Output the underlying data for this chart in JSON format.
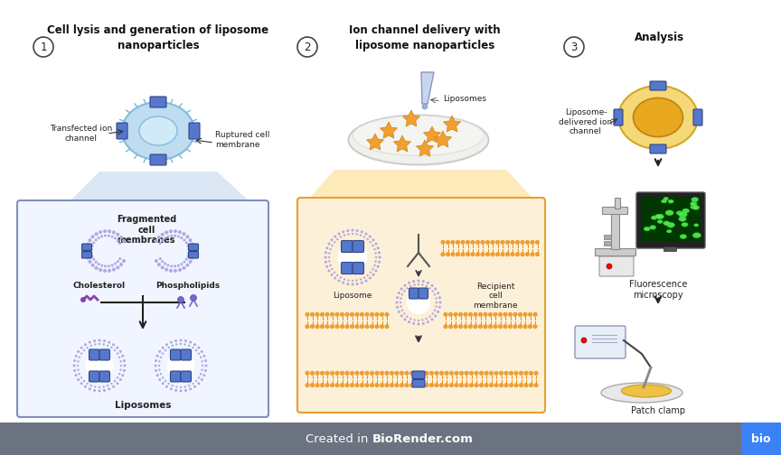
{
  "bg_color": "#ffffff",
  "footer_bg": "#6b7280",
  "footer_blue": "#3b82f6",
  "footer_text": "Created in ",
  "footer_brand": "BioRender.com",
  "footer_icon": "bio",
  "section1_title": "Cell lysis and generation of liposome\nnanoparticles",
  "section2_title": "Ion channel delivery with\nliposome nanoparticles",
  "section3_title": "Analysis",
  "label1": "Transfected ion\nchannel",
  "label2": "Ruptured cell\nmembrane",
  "label3": "Liposomes",
  "label4": "Fragmented\ncell\nmembranes",
  "label5": "Cholesterol",
  "label6": "Phospholipids",
  "label7": "Liposomes",
  "label8": "Liposome",
  "label9": "Recipient\ncell\nmembrane",
  "label10": "Liposome-\ndelivered ion\nchannel",
  "label11": "Fluorescence\nmicroscopy",
  "label12": "Patch clamp",
  "num1": "1",
  "num2": "2",
  "num3": "3",
  "cell_fill": "#b8d9f0",
  "cell_outline": "#7ab8d9",
  "liposome_fill": "#e8e0f8",
  "liposome_outline": "#8080c0",
  "liposome_spike": "#b0a8e0",
  "membrane_orange": "#f0a030",
  "membrane_dot": "#e89020",
  "channel_fill": "#5577cc",
  "channel_edge": "#334488",
  "box1_fill": "#f0f5ff",
  "box1_outline": "#8090c0",
  "box2_fill": "#fdf0d8",
  "box2_outline": "#e8a030",
  "funnel1_fill": "#ccddf0",
  "funnel2_fill": "#fde8b0",
  "cholesterol_color": "#8844aa",
  "phospholipid_color": "#7766cc",
  "cell3_outer": "#f5d878",
  "cell3_outer_edge": "#d4a820",
  "cell3_inner": "#e8a820",
  "cell3_inner_edge": "#c08010",
  "petri_fill": "#f0f0ec",
  "petri_edge": "#cccccc",
  "star_fill": "#f0a030",
  "star_edge": "#d08010",
  "pipette_fill": "#c8d4f0",
  "pipette_edge": "#8899bb",
  "screen_bg": "#111111",
  "screen_green": "#003800",
  "dot_green": "#44ff44",
  "mic_color": "#cccccc",
  "mic_edge": "#888888",
  "patch_plate": "#e8e8e8",
  "patch_sample": "#f0c040"
}
